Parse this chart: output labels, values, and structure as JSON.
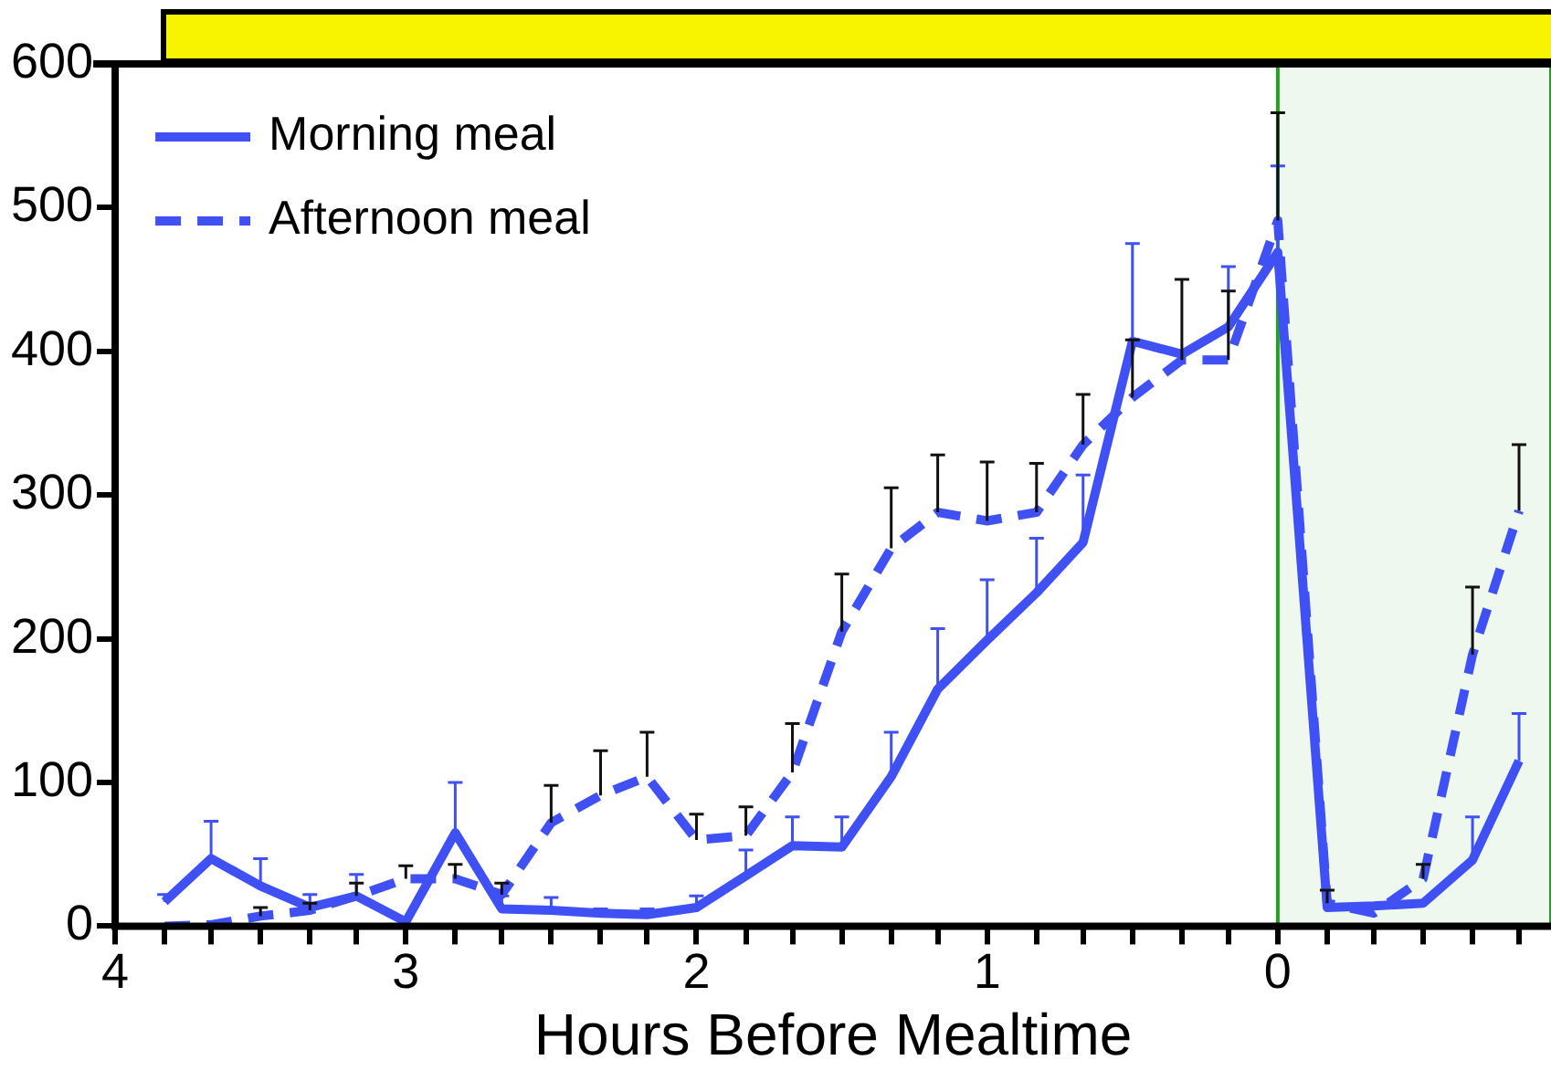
{
  "chart_data": {
    "type": "line",
    "xlabel": "Hours Before Mealtime",
    "x": [
      3.83,
      3.67,
      3.5,
      3.33,
      3.17,
      3,
      2.83,
      2.67,
      2.5,
      2.33,
      2.17,
      2,
      1.83,
      1.67,
      1.5,
      1.33,
      1.17,
      1,
      0.83,
      0.67,
      0.5,
      0.33,
      0.17,
      0,
      -0.17,
      -0.33,
      -0.5,
      -0.67,
      -0.83
    ],
    "series": [
      {
        "name": "Morning meal",
        "color": "#3f51f5",
        "line_style": "solid",
        "values": [
          17,
          47,
          28,
          13,
          21,
          3,
          65,
          12,
          11,
          9,
          8,
          13,
          35,
          56,
          55,
          104,
          165,
          199,
          232,
          267,
          407,
          398,
          417,
          469,
          13,
          14,
          16,
          46,
          115
        ],
        "errors": [
          [
            17,
            22
          ],
          [
            47,
            73
          ],
          [
            28,
            47
          ],
          [
            13,
            22
          ],
          [
            21,
            36
          ],
          null,
          [
            65,
            100
          ],
          [
            12,
            21
          ],
          [
            11,
            20
          ],
          [
            9,
            12
          ],
          [
            8,
            12
          ],
          [
            13,
            21
          ],
          [
            35,
            53
          ],
          [
            56,
            76
          ],
          [
            55,
            76
          ],
          [
            104,
            135
          ],
          [
            165,
            207
          ],
          [
            199,
            241
          ],
          [
            232,
            270
          ],
          [
            267,
            314
          ],
          [
            407,
            475
          ],
          null,
          [
            417,
            459
          ],
          [
            469,
            529
          ],
          null,
          null,
          null,
          [
            46,
            76
          ],
          [
            115,
            148
          ]
        ]
      },
      {
        "name": "Afternoon meal",
        "color": "#3f51f5",
        "line_style": "dashed",
        "values": [
          0,
          1,
          7,
          11,
          21,
          33,
          33,
          22,
          72,
          91,
          104,
          60,
          63,
          107,
          205,
          263,
          288,
          282,
          288,
          335,
          368,
          394,
          394,
          491,
          16,
          9,
          33,
          189,
          289
        ],
        "errors": [
          null,
          null,
          [
            7,
            13
          ],
          [
            11,
            16
          ],
          [
            21,
            30
          ],
          [
            33,
            42
          ],
          [
            33,
            43
          ],
          [
            22,
            30
          ],
          [
            72,
            98
          ],
          [
            91,
            122
          ],
          [
            104,
            135
          ],
          [
            60,
            78
          ],
          [
            63,
            83
          ],
          [
            107,
            141
          ],
          [
            205,
            245
          ],
          [
            263,
            305
          ],
          [
            288,
            328
          ],
          [
            282,
            323
          ],
          [
            288,
            322
          ],
          [
            335,
            370
          ],
          [
            368,
            408
          ],
          [
            394,
            450
          ],
          [
            394,
            442
          ],
          [
            491,
            566
          ],
          [
            16,
            25
          ],
          null,
          [
            33,
            43
          ],
          [
            189,
            236
          ],
          [
            289,
            335
          ]
        ]
      }
    ],
    "xlim": [
      4,
      -0.94
    ],
    "xticks": [
      4,
      {
        "value": 3.83,
        "label": null
      },
      {
        "value": 3.67,
        "label": null
      },
      {
        "value": 3.5,
        "label": null
      },
      {
        "value": 3.33,
        "label": null
      },
      {
        "value": 3.17,
        "label": null
      },
      3,
      {
        "value": 2.83,
        "label": null
      },
      {
        "value": 2.67,
        "label": null
      },
      {
        "value": 2.5,
        "label": null
      },
      {
        "value": 2.33,
        "label": null
      },
      {
        "value": 2.17,
        "label": null
      },
      2,
      {
        "value": 1.83,
        "label": null
      },
      {
        "value": 1.67,
        "label": null
      },
      {
        "value": 1.5,
        "label": null
      },
      {
        "value": 1.33,
        "label": null
      },
      {
        "value": 1.17,
        "label": null
      },
      1,
      {
        "value": 0.83,
        "label": null
      },
      {
        "value": 0.67,
        "label": null
      },
      {
        "value": 0.5,
        "label": null
      },
      {
        "value": 0.33,
        "label": null
      },
      {
        "value": 0.17,
        "label": null
      },
      0,
      {
        "value": -0.17,
        "label": null
      },
      {
        "value": -0.33,
        "label": null
      },
      {
        "value": -0.5,
        "label": null
      },
      {
        "value": -0.67,
        "label": null
      },
      {
        "value": -0.83,
        "label": null
      }
    ],
    "ylim": [
      0,
      600
    ],
    "yticks": [
      0,
      100,
      200,
      300,
      400,
      500,
      600
    ],
    "bands": [
      {
        "axis": "x",
        "from": 0,
        "to": -0.94,
        "color": "#22a022"
      }
    ],
    "legend": "top left",
    "grid": false,
    "marker": "none"
  }
}
